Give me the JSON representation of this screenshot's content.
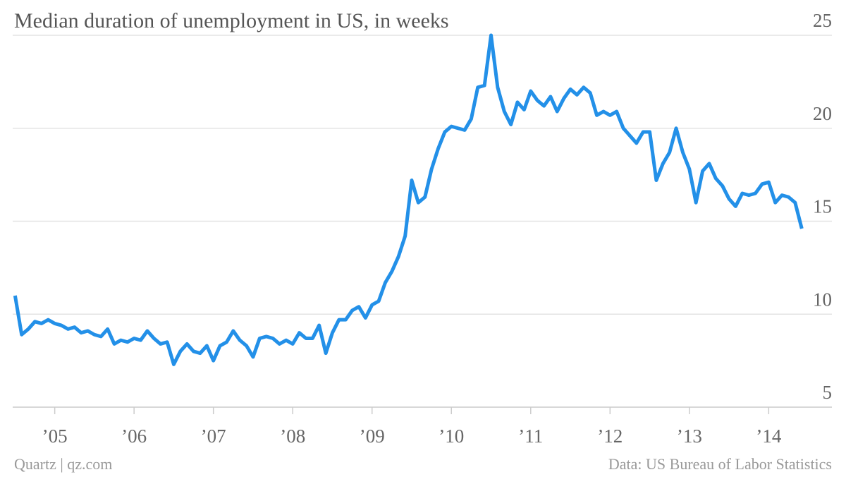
{
  "chart_data": {
    "type": "line",
    "title": "Median duration of unemployment in US, in weeks",
    "credit": "Quartz | qz.com",
    "source": "Data: US Bureau of Labor Statistics",
    "color": "#2390e8",
    "grid": true,
    "xlim": [
      2004.47,
      2014.45
    ],
    "ylim": [
      5,
      25
    ],
    "yticks": [
      5,
      10,
      15,
      20,
      25
    ],
    "xticks": [
      {
        "value": 2005,
        "label": "’05"
      },
      {
        "value": 2006,
        "label": "’06"
      },
      {
        "value": 2007,
        "label": "’07"
      },
      {
        "value": 2008,
        "label": "’08"
      },
      {
        "value": 2009,
        "label": "’09"
      },
      {
        "value": 2010,
        "label": "’10"
      },
      {
        "value": 2011,
        "label": "’11"
      },
      {
        "value": 2012,
        "label": "’12"
      },
      {
        "value": 2013,
        "label": "’13"
      },
      {
        "value": 2014,
        "label": "’14"
      }
    ],
    "x": [
      2004.5,
      2004.583,
      2004.667,
      2004.75,
      2004.833,
      2004.917,
      2005,
      2005.083,
      2005.167,
      2005.25,
      2005.333,
      2005.417,
      2005.5,
      2005.583,
      2005.667,
      2005.75,
      2005.833,
      2005.917,
      2006,
      2006.083,
      2006.167,
      2006.25,
      2006.333,
      2006.417,
      2006.5,
      2006.583,
      2006.667,
      2006.75,
      2006.833,
      2006.917,
      2007,
      2007.083,
      2007.167,
      2007.25,
      2007.333,
      2007.417,
      2007.5,
      2007.583,
      2007.667,
      2007.75,
      2007.833,
      2007.917,
      2008,
      2008.083,
      2008.167,
      2008.25,
      2008.333,
      2008.417,
      2008.5,
      2008.583,
      2008.667,
      2008.75,
      2008.833,
      2008.917,
      2009,
      2009.083,
      2009.167,
      2009.25,
      2009.333,
      2009.417,
      2009.5,
      2009.583,
      2009.667,
      2009.75,
      2009.833,
      2009.917,
      2010,
      2010.083,
      2010.167,
      2010.25,
      2010.333,
      2010.417,
      2010.5,
      2010.583,
      2010.667,
      2010.75,
      2010.833,
      2010.917,
      2011,
      2011.083,
      2011.167,
      2011.25,
      2011.333,
      2011.417,
      2011.5,
      2011.583,
      2011.667,
      2011.75,
      2011.833,
      2011.917,
      2012,
      2012.083,
      2012.167,
      2012.25,
      2012.333,
      2012.417,
      2012.5,
      2012.583,
      2012.667,
      2012.75,
      2012.833,
      2012.917,
      2013,
      2013.083,
      2013.167,
      2013.25,
      2013.333,
      2013.417,
      2013.5,
      2013.583,
      2013.667,
      2013.75,
      2013.833,
      2013.917,
      2014,
      2014.083,
      2014.167,
      2014.25,
      2014.333,
      2014.417
    ],
    "values": [
      11.0,
      8.9,
      9.2,
      9.6,
      9.5,
      9.7,
      9.5,
      9.4,
      9.2,
      9.3,
      9.0,
      9.1,
      8.9,
      8.8,
      9.2,
      8.4,
      8.6,
      8.5,
      8.7,
      8.6,
      9.1,
      8.7,
      8.4,
      8.5,
      7.3,
      8.0,
      8.4,
      8.0,
      7.9,
      8.3,
      7.5,
      8.3,
      8.5,
      9.1,
      8.6,
      8.3,
      7.7,
      8.7,
      8.8,
      8.7,
      8.4,
      8.6,
      8.4,
      9.0,
      8.7,
      8.7,
      9.4,
      7.9,
      9.0,
      9.7,
      9.7,
      10.2,
      10.4,
      9.8,
      10.5,
      10.7,
      11.7,
      12.3,
      13.1,
      14.2,
      17.2,
      16.0,
      16.3,
      17.8,
      18.9,
      19.8,
      20.1,
      20.0,
      19.9,
      20.5,
      22.2,
      22.3,
      25.0,
      22.2,
      20.9,
      20.2,
      21.4,
      21.0,
      22.0,
      21.5,
      21.2,
      21.7,
      20.9,
      21.6,
      22.1,
      21.8,
      22.2,
      21.9,
      20.7,
      20.9,
      20.7,
      20.9,
      20.0,
      19.6,
      19.2,
      19.8,
      19.8,
      17.2,
      18.1,
      18.7,
      20.0,
      18.7,
      17.8,
      16.0,
      17.7,
      18.1,
      17.3,
      16.9,
      16.2,
      15.8,
      16.5,
      16.4,
      16.5,
      17.0,
      17.1,
      16.0,
      16.4,
      16.3,
      16.0,
      14.6
    ]
  }
}
